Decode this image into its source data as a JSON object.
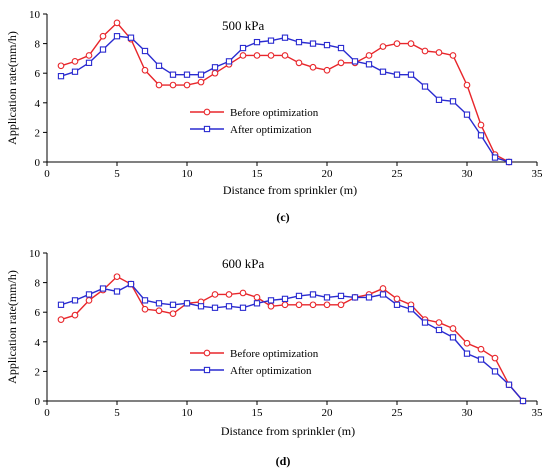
{
  "chart_data": [
    {
      "type": "line",
      "panel_label": "(c)",
      "annotation": "500 kPa",
      "xlabel": "Distance from sprinkler (m)",
      "ylabel": "Application rate(mm/h)",
      "xlim": [
        0,
        35
      ],
      "ylim": [
        0,
        10
      ],
      "x_ticks": [
        0,
        5,
        10,
        15,
        20,
        25,
        30,
        35
      ],
      "y_ticks": [
        0,
        2,
        4,
        6,
        8,
        10
      ],
      "grid": false,
      "legend_position": "center-left",
      "series": [
        {
          "name": "Before optimization",
          "color": "#e8262b",
          "marker": "circle",
          "x": [
            1,
            2,
            3,
            4,
            5,
            6,
            7,
            8,
            9,
            10,
            11,
            12,
            13,
            14,
            15,
            16,
            17,
            18,
            19,
            20,
            21,
            22,
            23,
            24,
            25,
            26,
            27,
            28,
            29,
            30,
            31,
            32,
            33
          ],
          "y": [
            6.5,
            6.8,
            7.2,
            8.5,
            9.4,
            8.3,
            6.2,
            5.2,
            5.2,
            5.2,
            5.4,
            6.0,
            6.6,
            7.2,
            7.2,
            7.2,
            7.2,
            6.7,
            6.4,
            6.2,
            6.7,
            6.7,
            7.2,
            7.8,
            8.0,
            8.0,
            7.5,
            7.4,
            7.2,
            5.2,
            2.5,
            0.5,
            0.0
          ]
        },
        {
          "name": "After optimization",
          "color": "#2a2bd0",
          "marker": "square",
          "x": [
            1,
            2,
            3,
            4,
            5,
            6,
            7,
            8,
            9,
            10,
            11,
            12,
            13,
            14,
            15,
            16,
            17,
            18,
            19,
            20,
            21,
            22,
            23,
            24,
            25,
            26,
            27,
            28,
            29,
            30,
            31,
            32,
            33
          ],
          "y": [
            5.8,
            6.1,
            6.7,
            7.6,
            8.5,
            8.4,
            7.5,
            6.5,
            5.9,
            5.9,
            5.9,
            6.4,
            6.8,
            7.7,
            8.1,
            8.2,
            8.4,
            8.1,
            8.0,
            7.9,
            7.7,
            6.8,
            6.6,
            6.1,
            5.9,
            5.9,
            5.1,
            4.2,
            4.1,
            3.2,
            1.8,
            0.3,
            0.0
          ]
        }
      ]
    },
    {
      "type": "line",
      "panel_label": "(d)",
      "annotation": "600 kPa",
      "xlabel": "Distance from sprinkler (m)",
      "ylabel": "Application rate(mm/h)",
      "xlim": [
        0,
        35
      ],
      "ylim": [
        0,
        10
      ],
      "x_ticks": [
        0,
        5,
        10,
        15,
        20,
        25,
        30,
        35
      ],
      "y_ticks": [
        0,
        2,
        4,
        6,
        8,
        10
      ],
      "grid": false,
      "legend_position": "bottom-center",
      "series": [
        {
          "name": "Before optimization",
          "color": "#e8262b",
          "marker": "circle",
          "x": [
            1,
            2,
            3,
            4,
            5,
            6,
            7,
            8,
            9,
            10,
            11,
            12,
            13,
            14,
            15,
            16,
            17,
            18,
            19,
            20,
            21,
            22,
            23,
            24,
            25,
            26,
            27,
            28,
            29,
            30,
            31,
            32,
            33,
            34
          ],
          "y": [
            5.5,
            5.8,
            6.8,
            7.5,
            8.4,
            7.9,
            6.2,
            6.1,
            5.9,
            6.6,
            6.7,
            7.2,
            7.2,
            7.3,
            7.0,
            6.4,
            6.5,
            6.5,
            6.5,
            6.5,
            6.5,
            7.0,
            7.2,
            7.6,
            6.9,
            6.5,
            5.5,
            5.3,
            4.9,
            3.9,
            3.5,
            2.9,
            1.1,
            0.0
          ]
        },
        {
          "name": "After optimization",
          "color": "#2a2bd0",
          "marker": "square",
          "x": [
            1,
            2,
            3,
            4,
            5,
            6,
            7,
            8,
            9,
            10,
            11,
            12,
            13,
            14,
            15,
            16,
            17,
            18,
            19,
            20,
            21,
            22,
            23,
            24,
            25,
            26,
            27,
            28,
            29,
            30,
            31,
            32,
            33,
            34
          ],
          "y": [
            6.5,
            6.8,
            7.2,
            7.6,
            7.4,
            7.9,
            6.8,
            6.6,
            6.5,
            6.6,
            6.4,
            6.3,
            6.4,
            6.3,
            6.6,
            6.8,
            6.9,
            7.1,
            7.2,
            7.0,
            7.1,
            7.0,
            7.0,
            7.2,
            6.5,
            6.2,
            5.3,
            4.8,
            4.3,
            3.2,
            2.8,
            2.0,
            1.1,
            0.0
          ]
        }
      ]
    }
  ]
}
